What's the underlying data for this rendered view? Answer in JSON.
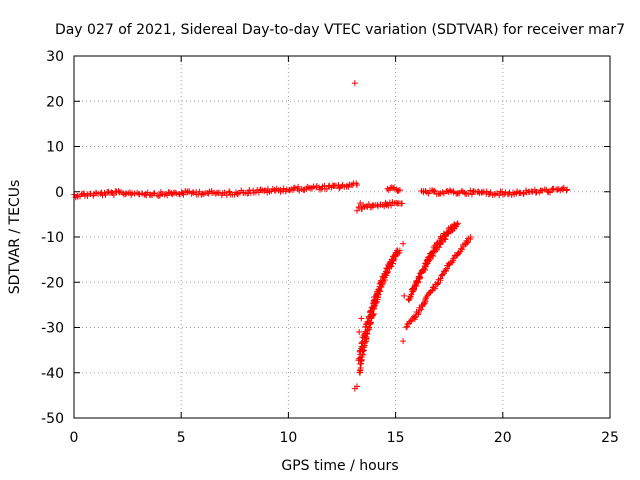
{
  "chart_data": {
    "type": "scatter",
    "title": "Day 027 of 2021, Sidereal Day-to-day VTEC variation (SDTVAR) for receiver mar7",
    "xlabel": "GPS time / hours",
    "ylabel": "SDTVAR / TECUs",
    "xlim": [
      0,
      25
    ],
    "ylim": [
      -50,
      30
    ],
    "xticks": [
      "0",
      "5",
      "10",
      "15",
      "20",
      "25"
    ],
    "yticks": [
      "30",
      "20",
      "10",
      "0",
      "-10",
      "-20",
      "-30",
      "-40",
      "-50"
    ],
    "xtick_values": [
      0,
      5,
      10,
      15,
      20,
      25
    ],
    "ytick_values": [
      30,
      20,
      10,
      0,
      -10,
      -20,
      -30,
      -40,
      -50
    ],
    "grid": true,
    "marker": "+",
    "color": "#ff0000",
    "series": [
      {
        "segments": [
          {
            "x": [
              0.0,
              1,
              2,
              3,
              4,
              5,
              6,
              7,
              8,
              9,
              10,
              11,
              12,
              12.5,
              13.2
            ],
            "y": [
              -0.8,
              -0.5,
              -0.3,
              -0.3,
              -0.5,
              -0.3,
              -0.2,
              -0.4,
              0.0,
              0.2,
              0.5,
              0.8,
              1.0,
              1.2,
              1.5
            ]
          },
          {
            "x": [
              13.2,
              13.5,
              14.0,
              14.5,
              15.0,
              15.3
            ],
            "y": [
              -3.8,
              -3.3,
              -3.0,
              -2.8,
              -2.7,
              -2.6
            ]
          },
          {
            "x": [
              14.6,
              14.8,
              15.0,
              15.2
            ],
            "y": [
              0.8,
              0.6,
              0.5,
              0.4
            ]
          },
          {
            "x": [
              16.2,
              17,
              18,
              19,
              20,
              21,
              22,
              23.0
            ],
            "y": [
              -0.2,
              -0.1,
              -0.1,
              -0.2,
              -0.4,
              -0.1,
              0.2,
              0.5
            ]
          },
          {
            "x": [
              13.3,
              13.6,
              14.0,
              14.4,
              14.8,
              15.1
            ],
            "y": [
              -40,
              -33,
              -26,
              -20,
              -16,
              -13
            ]
          },
          {
            "x": [
              13.3,
              13.6,
              14.0,
              14.4,
              14.8,
              15.2
            ],
            "y": [
              -37,
              -30,
              -24,
              -19,
              -15,
              -13
            ]
          },
          {
            "x": [
              15.6,
              16.0,
              16.5,
              17.0,
              17.5,
              17.8
            ],
            "y": [
              -24,
              -20,
              -15.5,
              -12,
              -9,
              -7.5
            ]
          },
          {
            "x": [
              15.8,
              16.2,
              16.6,
              17.0,
              17.5,
              17.9
            ],
            "y": [
              -22,
              -18,
              -14,
              -11,
              -8.5,
              -7
            ]
          },
          {
            "x": [
              15.5,
              16.0,
              16.5,
              17.0,
              17.5,
              18.0,
              18.5
            ],
            "y": [
              -30,
              -27,
              -23,
              -20,
              -16,
              -13,
              -10
            ]
          }
        ],
        "points": [
          {
            "x": 13.1,
            "y": 24
          },
          {
            "x": 13.1,
            "y": -43.5
          },
          {
            "x": 13.2,
            "y": -43
          },
          {
            "x": 13.4,
            "y": -28
          },
          {
            "x": 13.3,
            "y": -31
          },
          {
            "x": 15.35,
            "y": -11.5
          },
          {
            "x": 15.35,
            "y": -33
          },
          {
            "x": 15.4,
            "y": -23
          },
          {
            "x": 13.35,
            "y": -2.5
          }
        ]
      }
    ]
  }
}
